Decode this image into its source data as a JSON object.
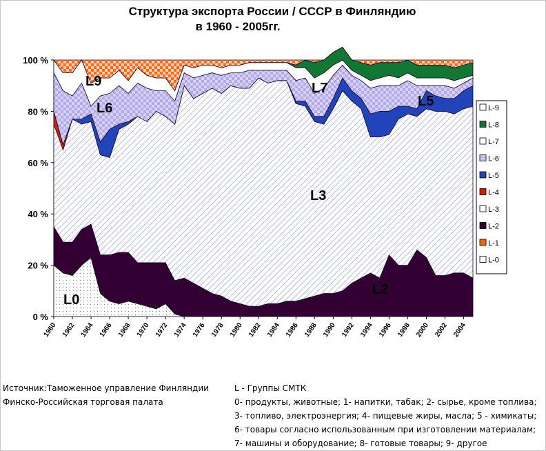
{
  "title_line1": "Структура экспорта  России / СССР в Финляндию",
  "title_line2": "в 1960 - 2005гг.",
  "footer": {
    "source_lines": [
      "Источник:Таможенное управление Финляндии",
      "Финско-Российская торговая палата"
    ],
    "legend_lines": [
      "L - Группы СМТК",
      "0- продукты, животные; 1- напитки, табак; 2- сырье, кроме топлива;",
      "3- топливо, электроэнергия; 4- пищевые жиры, масла; 5 - химикаты;",
      "6- товары согласно использованным при изготовлении материалам;",
      "7- машины и оборудование; 8- готовые товары; 9- другое"
    ]
  },
  "chart_data": {
    "type": "area",
    "stacked": true,
    "title": "Структура экспорта  России / СССР в Финляндию в 1960 - 2005гг.",
    "x": [
      1960,
      1961,
      1962,
      1963,
      1964,
      1965,
      1966,
      1967,
      1968,
      1969,
      1970,
      1971,
      1972,
      1973,
      1974,
      1975,
      1976,
      1977,
      1978,
      1979,
      1980,
      1981,
      1982,
      1983,
      1984,
      1985,
      1986,
      1987,
      1988,
      1989,
      1990,
      1991,
      1992,
      1993,
      1994,
      1995,
      1996,
      1997,
      1998,
      1999,
      2000,
      2001,
      2002,
      2003,
      2004,
      2005
    ],
    "x_tick_labels": [
      "1960",
      "1962",
      "1964",
      "1966",
      "1968",
      "1970",
      "1972",
      "1974",
      "1976",
      "1978",
      "1980",
      "1982",
      "1984",
      "1986",
      "1988",
      "1990",
      "1992",
      "1994",
      "1996",
      "1998",
      "2000",
      "2002",
      "2004"
    ],
    "y_tick_labels": [
      "0 %",
      "20 %",
      "40 %",
      "60 %",
      "80 %",
      "100 %"
    ],
    "ylim": [
      0,
      100
    ],
    "legend_position": "right",
    "series": [
      {
        "name": "L-0",
        "color": "#ffffff",
        "pattern": "dots",
        "values": [
          20,
          17,
          16,
          20,
          23,
          9,
          6,
          5,
          6,
          5,
          4,
          3,
          5,
          1,
          0,
          0,
          0,
          0,
          0,
          0,
          0,
          0,
          0,
          0,
          0,
          0,
          0,
          0,
          0,
          0,
          0,
          0,
          0,
          0,
          0,
          0,
          0,
          0,
          0,
          0,
          0,
          0,
          0,
          0,
          0,
          0
        ]
      },
      {
        "name": "L-1",
        "color": "#ff6600",
        "values": [
          0,
          0,
          0,
          0,
          0,
          0,
          0,
          0,
          0,
          0,
          0,
          0,
          0,
          0,
          0,
          0,
          0,
          0,
          0,
          0,
          0,
          0,
          0,
          0,
          0,
          0,
          0,
          0,
          0,
          0,
          0,
          0,
          0,
          0,
          0,
          0,
          0,
          0,
          0,
          0,
          0,
          0,
          0,
          0,
          0,
          0
        ]
      },
      {
        "name": "L-2",
        "color": "#330033",
        "values": [
          15,
          12,
          13,
          14,
          13,
          15,
          18,
          20,
          19,
          16,
          17,
          18,
          16,
          13,
          15,
          13,
          11,
          9,
          8,
          6,
          5,
          4,
          4,
          5,
          5,
          6,
          6,
          7,
          8,
          9,
          9,
          10,
          13,
          15,
          17,
          15,
          24,
          20,
          20,
          26,
          23,
          16,
          16,
          17,
          17,
          15
        ]
      },
      {
        "name": "L-3",
        "color": "#ffffff",
        "pattern": "diagonal-hatch",
        "values": [
          40,
          36,
          48,
          41,
          40,
          39,
          38,
          48,
          50,
          57,
          55,
          59,
          57,
          61,
          75,
          72,
          76,
          80,
          79,
          84,
          84,
          85,
          89,
          86,
          87,
          86,
          77,
          75,
          68,
          66,
          72,
          78,
          71,
          66,
          53,
          55,
          47,
          57,
          59,
          52,
          58,
          64,
          64,
          62,
          64,
          67
        ]
      },
      {
        "name": "L-4",
        "color": "#cc2200",
        "values": [
          5,
          2,
          0,
          0,
          0,
          0,
          0,
          0,
          0,
          0,
          0,
          0,
          0,
          0,
          0,
          0,
          0,
          0,
          0,
          0,
          0,
          0,
          0,
          0,
          0,
          0,
          0,
          0,
          0,
          0,
          0,
          0,
          0,
          0,
          0,
          0,
          0,
          0,
          0,
          0,
          0,
          0,
          0,
          0,
          0,
          0
        ]
      },
      {
        "name": "L-5",
        "color": "#2244bb",
        "values": [
          0,
          0,
          0,
          2,
          3,
          5,
          11,
          2,
          1,
          0,
          0,
          0,
          0,
          0,
          0,
          0,
          0,
          0,
          0,
          0,
          0,
          0,
          0,
          0,
          0,
          0,
          1,
          2,
          2,
          3,
          4,
          5,
          4,
          4,
          9,
          10,
          9,
          5,
          3,
          3,
          7,
          6,
          5,
          6,
          7,
          8
        ]
      },
      {
        "name": "L-6",
        "color": "#c8c0f0",
        "pattern": "checker",
        "values": [
          15,
          21,
          9,
          14,
          3,
          18,
          14,
          15,
          11,
          13,
          13,
          8,
          10,
          9,
          5,
          8,
          7,
          6,
          7,
          5,
          6,
          7,
          3,
          5,
          4,
          4,
          8,
          9,
          9,
          11,
          9,
          5,
          6,
          7,
          10,
          10,
          10,
          8,
          10,
          9,
          2,
          4,
          5,
          4,
          3,
          3
        ]
      },
      {
        "name": "L-7",
        "color": "#ffffff",
        "values": [
          5,
          7,
          9,
          9,
          9,
          7,
          6,
          6,
          5,
          6,
          5,
          5,
          5,
          4,
          3,
          4,
          4,
          3,
          3,
          3,
          3,
          3,
          3,
          3,
          3,
          3,
          5,
          4,
          6,
          6,
          4,
          2,
          2,
          2,
          3,
          3,
          4,
          3,
          3,
          3,
          3,
          3,
          3,
          3,
          2,
          1
        ]
      },
      {
        "name": "L-8",
        "color": "#117733",
        "values": [
          0,
          0,
          0,
          0,
          0,
          0,
          0,
          0,
          0,
          0,
          0,
          0,
          0,
          0,
          0,
          0,
          0,
          0,
          0,
          0,
          0,
          0,
          0,
          0,
          0,
          0,
          1,
          3,
          6,
          5,
          5,
          5,
          4,
          5,
          6,
          6,
          5,
          6,
          5,
          5,
          5,
          5,
          5,
          5,
          5,
          5
        ]
      },
      {
        "name": "L-9",
        "color": "#ff6600",
        "pattern": "checker",
        "values": [
          0,
          5,
          5,
          0,
          9,
          7,
          7,
          4,
          8,
          3,
          6,
          7,
          7,
          12,
          2,
          3,
          2,
          2,
          3,
          2,
          2,
          1,
          1,
          1,
          1,
          1,
          2,
          0,
          1,
          0,
          0,
          0,
          0,
          1,
          2,
          1,
          1,
          1,
          0,
          2,
          2,
          2,
          2,
          3,
          2,
          1
        ]
      }
    ],
    "in_chart_labels": [
      "L0",
      "L2",
      "L3",
      "L5",
      "L6",
      "L7",
      "L9"
    ]
  }
}
